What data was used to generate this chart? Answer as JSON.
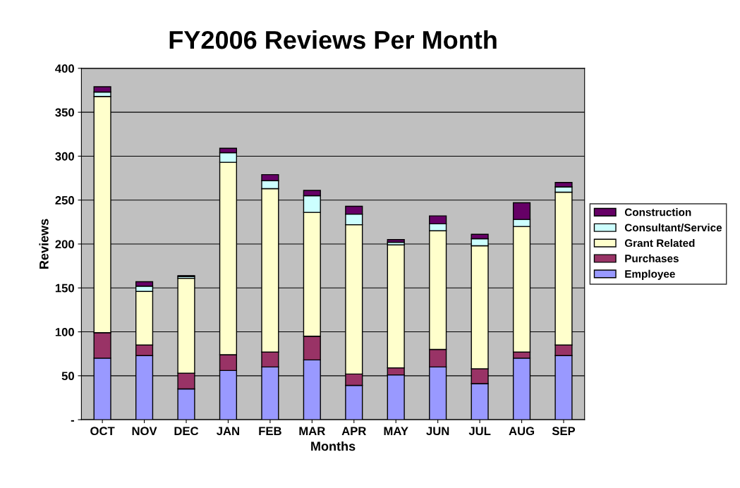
{
  "chart_data": {
    "type": "bar",
    "title": "FY2006 Reviews Per Month",
    "xlabel": "Months",
    "ylabel": "Reviews",
    "stacked": true,
    "categories": [
      "OCT",
      "NOV",
      "DEC",
      "JAN",
      "FEB",
      "MAR",
      "APR",
      "MAY",
      "JUN",
      "JUL",
      "AUG",
      "SEP"
    ],
    "series": [
      {
        "name": "Employee",
        "color": "#9999ff",
        "values": [
          70,
          73,
          35,
          56,
          60,
          68,
          39,
          51,
          60,
          41,
          70,
          73
        ]
      },
      {
        "name": "Purchases",
        "color": "#993366",
        "values": [
          29,
          12,
          18,
          18,
          17,
          27,
          13,
          8,
          20,
          17,
          7,
          12
        ]
      },
      {
        "name": "Grant Related",
        "color": "#ffffcc",
        "values": [
          269,
          61,
          108,
          219,
          186,
          141,
          170,
          140,
          135,
          140,
          143,
          174
        ]
      },
      {
        "name": "Consultant/Service",
        "color": "#ccffff",
        "values": [
          5,
          6,
          2,
          11,
          9,
          19,
          12,
          3,
          8,
          8,
          8,
          6
        ]
      },
      {
        "name": "Construction",
        "color": "#660066",
        "values": [
          6,
          5,
          1,
          5,
          7,
          6,
          9,
          3,
          9,
          5,
          19,
          5
        ]
      }
    ],
    "ylim": [
      0,
      400
    ],
    "yticks": [
      {
        "value": 0,
        "label": "-"
      },
      50,
      100,
      150,
      200,
      250,
      300,
      350,
      400
    ],
    "grid": "y",
    "legend": "right"
  }
}
